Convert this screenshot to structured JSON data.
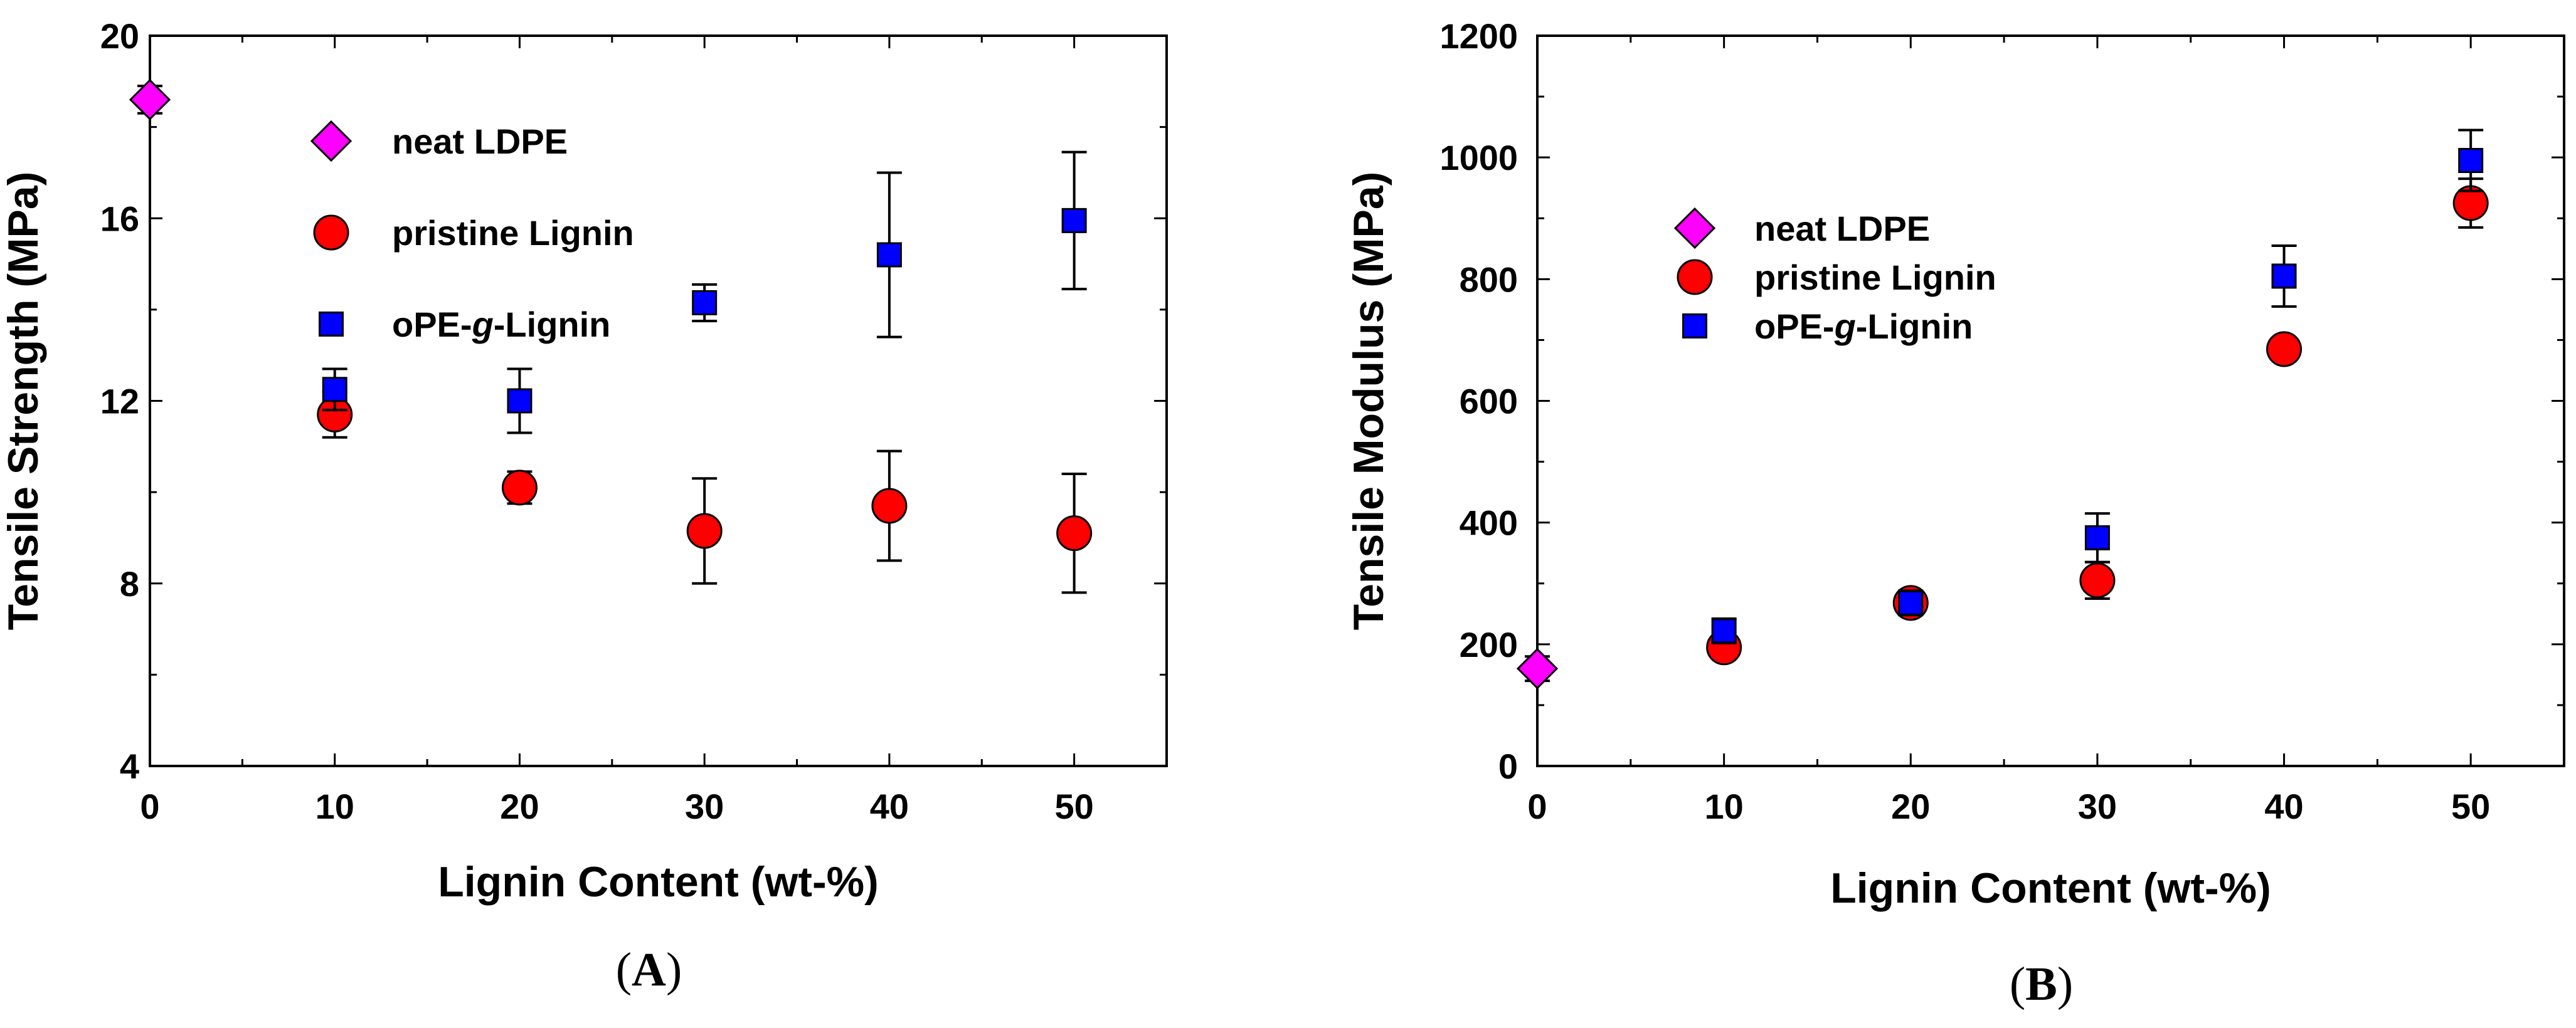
{
  "chart_data": [
    {
      "type": "scatter",
      "panel_label": "A",
      "xlabel": "Lignin Content (wt-%)",
      "ylabel": "Tensile Strength (MPa)",
      "xlim": [
        0,
        55
      ],
      "ylim": [
        4,
        20
      ],
      "xticks": [
        0,
        10,
        20,
        30,
        40,
        50
      ],
      "yticks": [
        4,
        8,
        12,
        16,
        20
      ],
      "xtick_labels": [
        "0",
        "10",
        "20",
        "30",
        "40",
        "50"
      ],
      "ytick_labels": [
        "4",
        "8",
        "12",
        "16",
        "20"
      ],
      "legend_position": "upper-left",
      "series": [
        {
          "name": "neat LDPE",
          "marker": "diamond",
          "color": "#ff00ff",
          "points": [
            {
              "x": 0,
              "y": 18.6,
              "err": 0.3
            }
          ]
        },
        {
          "name": "pristine Lignin",
          "marker": "circle",
          "color": "#ff0000",
          "points": [
            {
              "x": 10,
              "y": 11.7,
              "err": 0.5
            },
            {
              "x": 20,
              "y": 10.1,
              "err": 0.35
            },
            {
              "x": 30,
              "y": 9.15,
              "err": 1.15
            },
            {
              "x": 40,
              "y": 9.7,
              "err": 1.2
            },
            {
              "x": 50,
              "y": 9.1,
              "err": 1.3
            }
          ]
        },
        {
          "name": "oPE-g-Lignin",
          "marker": "square",
          "color": "#0000ff",
          "points": [
            {
              "x": 10,
              "y": 12.25,
              "err": 0.45
            },
            {
              "x": 20,
              "y": 12.0,
              "err": 0.7
            },
            {
              "x": 30,
              "y": 14.15,
              "err": 0.4
            },
            {
              "x": 40,
              "y": 15.2,
              "err": 1.8
            },
            {
              "x": 50,
              "y": 15.95,
              "err": 1.5
            }
          ]
        }
      ]
    },
    {
      "type": "scatter",
      "panel_label": "B",
      "xlabel": "Lignin Content (wt-%)",
      "ylabel": "Tensile Modulus (MPa)",
      "xlim": [
        0,
        55
      ],
      "ylim": [
        0,
        1200
      ],
      "xticks": [
        0,
        10,
        20,
        30,
        40,
        50
      ],
      "yticks": [
        0,
        200,
        400,
        600,
        800,
        1000,
        1200
      ],
      "xtick_labels": [
        "0",
        "10",
        "20",
        "30",
        "40",
        "50"
      ],
      "ytick_labels": [
        "0",
        "200",
        "400",
        "600",
        "800",
        "1000",
        "1200"
      ],
      "legend_position": "upper-left",
      "series": [
        {
          "name": "neat LDPE",
          "marker": "diamond",
          "color": "#ff00ff",
          "points": [
            {
              "x": 0,
              "y": 160,
              "err": 20
            }
          ]
        },
        {
          "name": "pristine Lignin",
          "marker": "circle",
          "color": "#ff0000",
          "points": [
            {
              "x": 10,
              "y": 195,
              "err": 15
            },
            {
              "x": 20,
              "y": 268,
              "err": 15
            },
            {
              "x": 30,
              "y": 305,
              "err": 30
            },
            {
              "x": 40,
              "y": 685,
              "err": 15
            },
            {
              "x": 50,
              "y": 925,
              "err": 40
            }
          ]
        },
        {
          "name": "oPE-g-Lignin",
          "marker": "square",
          "color": "#0000ff",
          "points": [
            {
              "x": 10,
              "y": 222,
              "err": 20
            },
            {
              "x": 20,
              "y": 268,
              "err": 20
            },
            {
              "x": 30,
              "y": 375,
              "err": 40
            },
            {
              "x": 40,
              "y": 805,
              "err": 50
            },
            {
              "x": 50,
              "y": 995,
              "err": 50
            }
          ]
        }
      ]
    }
  ]
}
